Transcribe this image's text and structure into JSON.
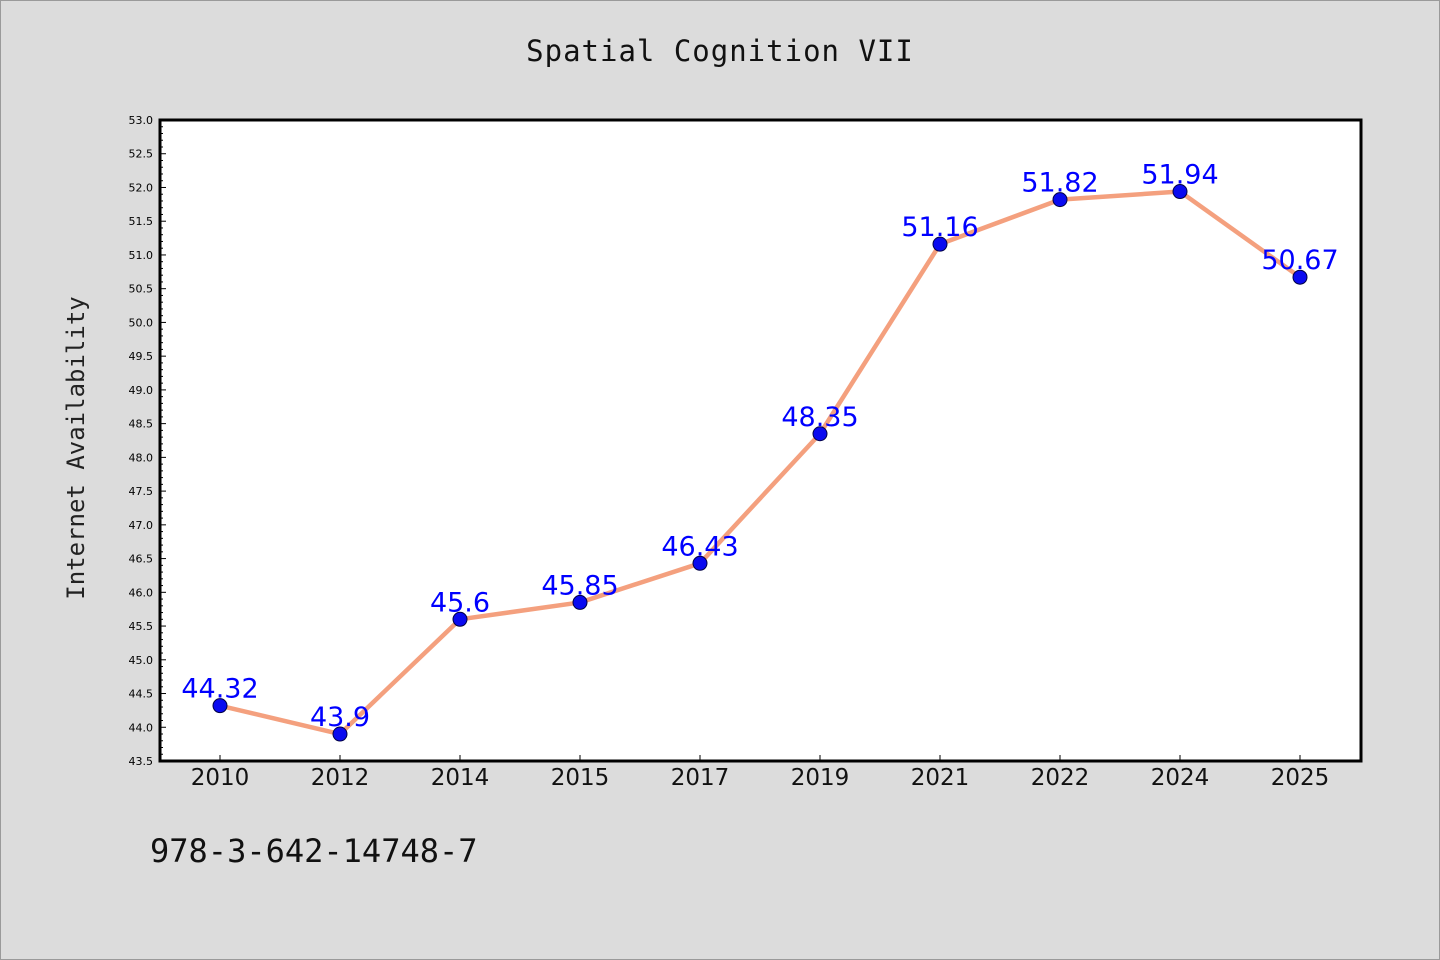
{
  "chart_data": {
    "type": "line",
    "title": "Spatial Cognition VII",
    "xlabel": "",
    "ylabel": "Internet Availability",
    "categories": [
      "2010",
      "2012",
      "2014",
      "2015",
      "2017",
      "2019",
      "2021",
      "2022",
      "2024",
      "2025"
    ],
    "series": [
      {
        "values": [
          44.32,
          43.9,
          45.6,
          45.85,
          46.43,
          48.35,
          51.16,
          51.82,
          51.94,
          50.67
        ],
        "labels": [
          "44.32",
          "43.9",
          "45.6",
          "45.85",
          "46.43",
          "48.35",
          "51.16",
          "51.82",
          "51.94",
          "50.67"
        ]
      }
    ],
    "ylim": [
      43.5,
      53.0
    ],
    "yticks": [
      "43.5",
      "44.0",
      "44.5",
      "45.0",
      "45.5",
      "46.0",
      "46.5",
      "47.0",
      "47.5",
      "48.0",
      "48.5",
      "49.0",
      "49.5",
      "50.0",
      "50.5",
      "51.0",
      "51.5",
      "52.0",
      "52.5",
      "53.0"
    ],
    "grid": false,
    "legend": "none",
    "colors": {
      "line": "#f4a07e",
      "marker": "#0a0af0",
      "data_label": "#0000ff",
      "background": "#dcdcdc",
      "plot_area": "#ffffff"
    }
  },
  "footer_text": "978-3-642-14748-7"
}
